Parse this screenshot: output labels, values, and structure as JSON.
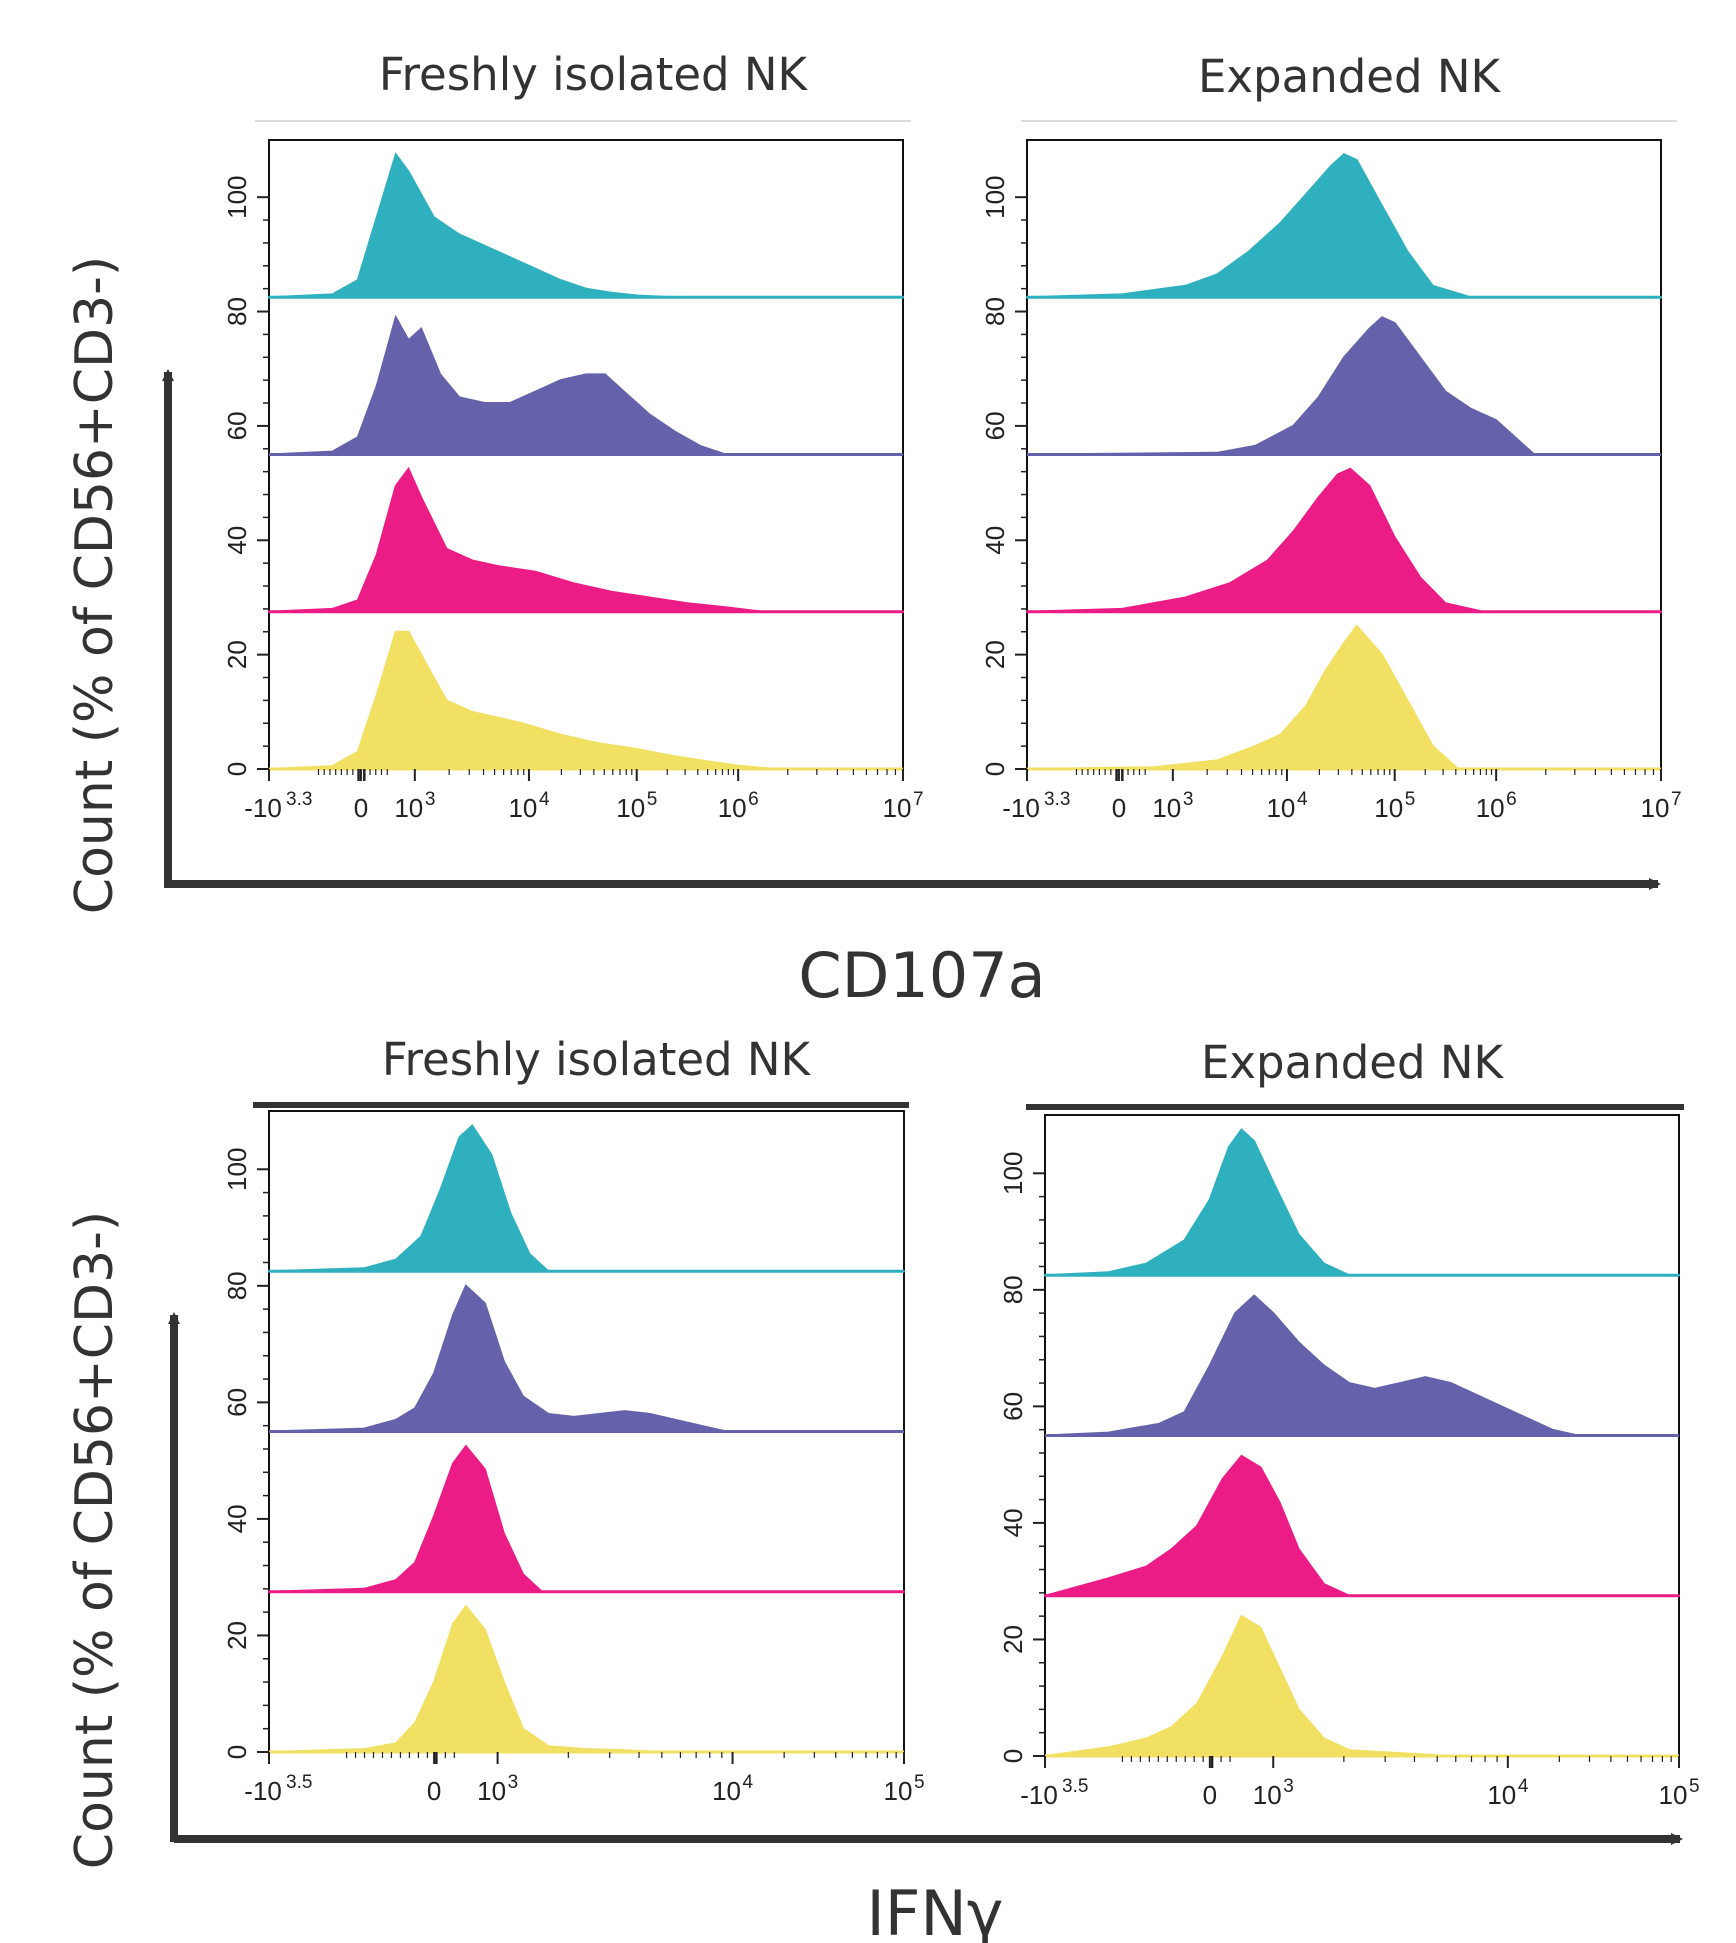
{
  "figure": {
    "rows": [
      {
        "x_axis_label": "CD107a",
        "y_axis_label": "Count (% of CD56+CD3-)",
        "panels": [
          {
            "title": "Freshly isolated NK"
          },
          {
            "title": "Expanded NK"
          }
        ]
      },
      {
        "x_axis_label": "IFNγ",
        "y_axis_label": "Count (% of CD56+CD3-)",
        "panels": [
          {
            "title": "Freshly isolated NK"
          },
          {
            "title": "Expanded NK"
          }
        ]
      }
    ]
  },
  "colors": {
    "teal": "#2fb0be",
    "purple": "#6562ab",
    "magenta": "#ec1c86",
    "yellow": "#f2e062",
    "axis": "#333333",
    "frame": "#111111"
  },
  "chart_data": [
    {
      "type": "area",
      "title": "Freshly isolated NK",
      "xlabel": "CD107a",
      "ylabel": "Count (% of CD56+CD3-)",
      "x_scale": "biexponential",
      "x_ticks": [
        {
          "base": "-10",
          "exp": "3.3"
        },
        {
          "base": "0",
          "exp": ""
        },
        {
          "base": "10",
          "exp": "3"
        },
        {
          "base": "10",
          "exp": "4"
        },
        {
          "base": "10",
          "exp": "5"
        },
        {
          "base": "10",
          "exp": "6"
        },
        {
          "base": "10",
          "exp": "7"
        }
      ],
      "y_ticks": [
        "0",
        "20",
        "40",
        "60",
        "80",
        "100"
      ],
      "ylim": [
        0,
        110
      ],
      "offsets": [
        82.5,
        55,
        27.5,
        0
      ],
      "series": [
        {
          "color": "teal",
          "x": [
            0.0,
            0.1,
            0.14,
            0.17,
            0.2,
            0.22,
            0.26,
            0.3,
            0.34,
            0.38,
            0.42,
            0.46,
            0.5,
            0.54,
            0.58,
            0.62,
            0.66,
            1.0
          ],
          "values": [
            0,
            0.5,
            3,
            14,
            25,
            22,
            14,
            11,
            9,
            7,
            5,
            3,
            1.5,
            0.8,
            0.3,
            0.1,
            0,
            0
          ]
        },
        {
          "color": "purple",
          "x": [
            0.0,
            0.1,
            0.14,
            0.17,
            0.2,
            0.22,
            0.24,
            0.27,
            0.3,
            0.34,
            0.38,
            0.42,
            0.46,
            0.5,
            0.53,
            0.56,
            0.6,
            0.64,
            0.68,
            0.72,
            1.0
          ],
          "values": [
            0,
            0.5,
            3,
            12,
            24,
            20,
            22,
            14,
            10,
            9,
            9,
            11,
            13,
            14,
            14,
            11,
            7,
            4,
            1.5,
            0,
            0
          ]
        },
        {
          "color": "magenta",
          "x": [
            0.0,
            0.1,
            0.14,
            0.17,
            0.2,
            0.22,
            0.24,
            0.28,
            0.32,
            0.36,
            0.42,
            0.48,
            0.54,
            0.6,
            0.66,
            0.72,
            0.78,
            1.0
          ],
          "values": [
            0,
            0.5,
            2,
            10,
            22,
            25,
            20,
            11,
            9,
            8,
            7,
            5,
            3.5,
            2.5,
            1.5,
            0.8,
            0,
            0
          ]
        },
        {
          "color": "yellow",
          "x": [
            0.0,
            0.1,
            0.14,
            0.17,
            0.2,
            0.22,
            0.25,
            0.28,
            0.32,
            0.36,
            0.4,
            0.46,
            0.52,
            0.58,
            0.64,
            0.7,
            0.74,
            0.8,
            1.0
          ],
          "values": [
            0,
            0.5,
            3,
            13,
            24,
            24,
            18,
            12,
            10,
            9,
            8,
            6,
            4.5,
            3.5,
            2.2,
            1.2,
            0.6,
            0,
            0
          ]
        }
      ]
    },
    {
      "type": "area",
      "title": "Expanded NK",
      "xlabel": "CD107a",
      "ylabel": "Count (% of CD56+CD3-)",
      "x_scale": "biexponential",
      "x_ticks": [
        {
          "base": "-10",
          "exp": "3.3"
        },
        {
          "base": "0",
          "exp": ""
        },
        {
          "base": "10",
          "exp": "3"
        },
        {
          "base": "10",
          "exp": "4"
        },
        {
          "base": "10",
          "exp": "5"
        },
        {
          "base": "10",
          "exp": "6"
        },
        {
          "base": "10",
          "exp": "7"
        }
      ],
      "y_ticks": [
        "0",
        "20",
        "40",
        "60",
        "80",
        "100"
      ],
      "ylim": [
        0,
        110
      ],
      "offsets": [
        82.5,
        55,
        27.5,
        0
      ],
      "series": [
        {
          "color": "teal",
          "x": [
            0.0,
            0.15,
            0.25,
            0.3,
            0.35,
            0.4,
            0.44,
            0.48,
            0.5,
            0.52,
            0.56,
            0.6,
            0.64,
            0.7,
            1.0
          ],
          "values": [
            0,
            0.5,
            2,
            4,
            8,
            13,
            18,
            23,
            25,
            24,
            16,
            8,
            2,
            0,
            0
          ]
        },
        {
          "color": "purple",
          "x": [
            0.0,
            0.3,
            0.36,
            0.42,
            0.46,
            0.5,
            0.54,
            0.56,
            0.58,
            0.62,
            0.66,
            0.7,
            0.74,
            0.76,
            0.8,
            1.0
          ],
          "values": [
            0,
            0.3,
            1.5,
            5,
            10,
            17,
            22,
            24,
            23,
            17,
            11,
            8,
            6,
            4,
            0,
            0
          ]
        },
        {
          "color": "magenta",
          "x": [
            0.0,
            0.15,
            0.25,
            0.32,
            0.38,
            0.42,
            0.46,
            0.49,
            0.51,
            0.54,
            0.58,
            0.62,
            0.66,
            0.72,
            1.0
          ],
          "values": [
            0,
            0.5,
            2.5,
            5,
            9,
            14,
            20,
            24,
            25,
            22,
            13,
            6,
            1.5,
            0,
            0
          ]
        },
        {
          "color": "yellow",
          "x": [
            0.0,
            0.2,
            0.3,
            0.36,
            0.4,
            0.44,
            0.47,
            0.5,
            0.52,
            0.56,
            0.6,
            0.64,
            0.68,
            1.0
          ],
          "values": [
            0,
            0.3,
            1.5,
            4,
            6,
            11,
            17,
            22,
            25,
            20,
            12,
            4,
            0,
            0
          ]
        }
      ]
    },
    {
      "type": "area",
      "title": "Freshly isolated NK",
      "xlabel": "IFNγ",
      "ylabel": "Count (% of CD56+CD3-)",
      "x_scale": "biexponential",
      "x_ticks": [
        {
          "base": "-10",
          "exp": "3.5"
        },
        {
          "base": "0",
          "exp": ""
        },
        {
          "base": "10",
          "exp": "3"
        },
        {
          "base": "10",
          "exp": "4"
        },
        {
          "base": "10",
          "exp": "5"
        }
      ],
      "y_ticks": [
        "0",
        "20",
        "40",
        "60",
        "80",
        "100"
      ],
      "ylim": [
        0,
        110
      ],
      "offsets": [
        82.5,
        55,
        27.5,
        0
      ],
      "series": [
        {
          "color": "teal",
          "x": [
            0.0,
            0.15,
            0.2,
            0.24,
            0.27,
            0.3,
            0.32,
            0.35,
            0.38,
            0.41,
            0.44,
            1.0
          ],
          "values": [
            0,
            0.5,
            2,
            6,
            14,
            23,
            25,
            20,
            10,
            3,
            0,
            0
          ]
        },
        {
          "color": "purple",
          "x": [
            0.0,
            0.15,
            0.2,
            0.23,
            0.26,
            0.29,
            0.31,
            0.34,
            0.37,
            0.4,
            0.44,
            0.48,
            0.52,
            0.56,
            0.6,
            0.64,
            0.68,
            0.72,
            1.0
          ],
          "values": [
            0,
            0.5,
            2,
            4,
            10,
            20,
            25,
            22,
            12,
            6,
            3,
            2.5,
            3,
            3.5,
            3,
            2,
            1,
            0,
            0
          ]
        },
        {
          "color": "magenta",
          "x": [
            0.0,
            0.15,
            0.2,
            0.23,
            0.26,
            0.29,
            0.31,
            0.34,
            0.37,
            0.4,
            0.43,
            1.0
          ],
          "values": [
            0,
            0.5,
            2,
            5,
            13,
            22,
            25,
            21,
            10,
            3,
            0,
            0
          ]
        },
        {
          "color": "yellow",
          "x": [
            0.0,
            0.15,
            0.2,
            0.23,
            0.26,
            0.29,
            0.31,
            0.34,
            0.37,
            0.4,
            0.44,
            0.5,
            0.56,
            0.62,
            1.0
          ],
          "values": [
            0,
            0.5,
            1.5,
            5,
            12,
            22,
            25,
            21,
            12,
            4,
            1,
            0.5,
            0.3,
            0,
            0
          ]
        }
      ]
    },
    {
      "type": "area",
      "title": "Expanded NK",
      "xlabel": "IFNγ",
      "ylabel": "Count (% of CD56+CD3-)",
      "x_scale": "biexponential",
      "x_ticks": [
        {
          "base": "-10",
          "exp": "3.5"
        },
        {
          "base": "0",
          "exp": ""
        },
        {
          "base": "10",
          "exp": "3"
        },
        {
          "base": "10",
          "exp": "4"
        },
        {
          "base": "10",
          "exp": "5"
        }
      ],
      "y_ticks": [
        "0",
        "20",
        "40",
        "60",
        "80",
        "100"
      ],
      "ylim": [
        0,
        110
      ],
      "offsets": [
        82.5,
        55,
        27.5,
        0
      ],
      "series": [
        {
          "color": "teal",
          "x": [
            0.0,
            0.1,
            0.16,
            0.22,
            0.26,
            0.29,
            0.31,
            0.33,
            0.36,
            0.4,
            0.44,
            0.48,
            1.0
          ],
          "values": [
            0,
            0.5,
            2,
            6,
            13,
            22,
            25,
            23,
            16,
            7,
            2,
            0,
            0
          ]
        },
        {
          "color": "purple",
          "x": [
            0.0,
            0.1,
            0.18,
            0.22,
            0.26,
            0.3,
            0.33,
            0.36,
            0.4,
            0.44,
            0.48,
            0.52,
            0.56,
            0.6,
            0.64,
            0.68,
            0.72,
            0.76,
            0.8,
            0.84,
            1.0
          ],
          "values": [
            0,
            0.5,
            2,
            4,
            12,
            21,
            24,
            21,
            16,
            12,
            9,
            8,
            9,
            10,
            9,
            7,
            5,
            3,
            1,
            0,
            0
          ]
        },
        {
          "color": "magenta",
          "x": [
            0.0,
            0.1,
            0.16,
            0.2,
            0.24,
            0.28,
            0.31,
            0.34,
            0.37,
            0.4,
            0.44,
            0.48,
            1.0
          ],
          "values": [
            0,
            3,
            5,
            8,
            12,
            20,
            24,
            22,
            16,
            8,
            2,
            0,
            0
          ]
        },
        {
          "color": "yellow",
          "x": [
            0.0,
            0.1,
            0.16,
            0.2,
            0.24,
            0.28,
            0.31,
            0.34,
            0.37,
            0.4,
            0.44,
            0.48,
            0.56,
            0.64,
            1.0
          ],
          "values": [
            0,
            1.5,
            3,
            5,
            9,
            17,
            24,
            22,
            15,
            8,
            3,
            1,
            0.5,
            0,
            0
          ]
        }
      ]
    }
  ]
}
